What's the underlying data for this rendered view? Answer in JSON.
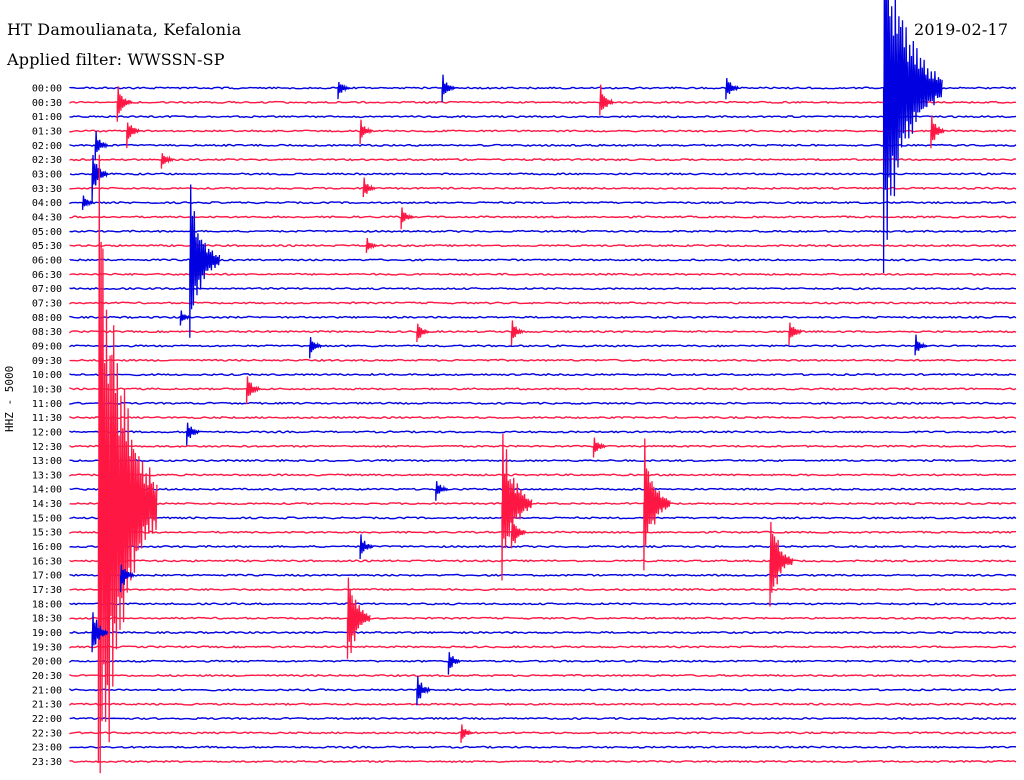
{
  "header": {
    "station": "HT Damoulianata, Kefalonia",
    "date": "2019-02-17",
    "filter": "Applied filter: WWSSN-SP"
  },
  "chart_data": {
    "type": "line",
    "title": "HT Damoulianata, Kefalonia",
    "ylabel": "HHZ - 5000",
    "xlabel": "",
    "row_labels": [
      "00:00",
      "00:30",
      "01:00",
      "01:30",
      "02:00",
      "02:30",
      "03:00",
      "03:30",
      "04:00",
      "04:30",
      "05:00",
      "05:30",
      "06:00",
      "06:30",
      "07:00",
      "07:30",
      "08:00",
      "08:30",
      "09:00",
      "09:30",
      "10:00",
      "10:30",
      "11:00",
      "11:30",
      "12:00",
      "12:30",
      "13:00",
      "13:30",
      "14:00",
      "14:30",
      "15:00",
      "15:30",
      "16:00",
      "16:30",
      "17:00",
      "17:30",
      "18:00",
      "18:30",
      "19:00",
      "19:30",
      "20:00",
      "20:30",
      "21:00",
      "21:30",
      "22:00",
      "22:30",
      "23:00",
      "23:30"
    ],
    "colors": [
      "#0000e0",
      "#ff1744"
    ],
    "events": [
      {
        "time": "00:00",
        "minute": 8.5,
        "amplitude": 0.8
      },
      {
        "time": "00:00",
        "minute": 11.8,
        "amplitude": 1.2
      },
      {
        "time": "00:00",
        "minute": 20.8,
        "amplitude": 1.1
      },
      {
        "time": "00:00",
        "minute": 25.8,
        "amplitude": 14.0
      },
      {
        "time": "00:30",
        "minute": 1.5,
        "amplitude": 1.6
      },
      {
        "time": "00:30",
        "minute": 16.8,
        "amplitude": 1.5
      },
      {
        "time": "01:30",
        "minute": 1.8,
        "amplitude": 1.2
      },
      {
        "time": "01:30",
        "minute": 9.2,
        "amplitude": 1.0
      },
      {
        "time": "01:30",
        "minute": 27.3,
        "amplitude": 1.5
      },
      {
        "time": "02:00",
        "minute": 0.8,
        "amplitude": 1.2
      },
      {
        "time": "02:30",
        "minute": 2.9,
        "amplitude": 0.9
      },
      {
        "time": "03:00",
        "minute": 0.7,
        "amplitude": 2.0
      },
      {
        "time": "03:30",
        "minute": 9.3,
        "amplitude": 1.0
      },
      {
        "time": "04:00",
        "minute": 0.4,
        "amplitude": 0.7
      },
      {
        "time": "04:30",
        "minute": 10.5,
        "amplitude": 0.9
      },
      {
        "time": "05:30",
        "minute": 9.4,
        "amplitude": 0.7
      },
      {
        "time": "06:00",
        "minute": 3.8,
        "amplitude": 6.0
      },
      {
        "time": "08:00",
        "minute": 3.5,
        "amplitude": 0.6
      },
      {
        "time": "08:30",
        "minute": 11.0,
        "amplitude": 1.0
      },
      {
        "time": "08:30",
        "minute": 14.0,
        "amplitude": 1.0
      },
      {
        "time": "08:30",
        "minute": 22.8,
        "amplitude": 1.2
      },
      {
        "time": "09:00",
        "minute": 7.6,
        "amplitude": 1.0
      },
      {
        "time": "09:00",
        "minute": 26.8,
        "amplitude": 1.0
      },
      {
        "time": "10:30",
        "minute": 5.6,
        "amplitude": 1.3
      },
      {
        "time": "12:00",
        "minute": 3.7,
        "amplitude": 1.1
      },
      {
        "time": "12:30",
        "minute": 16.6,
        "amplitude": 1.0
      },
      {
        "time": "14:00",
        "minute": 11.6,
        "amplitude": 1.0
      },
      {
        "time": "14:30",
        "minute": 0.9,
        "amplitude": 30.0
      },
      {
        "time": "14:30",
        "minute": 13.7,
        "amplitude": 6.0
      },
      {
        "time": "14:30",
        "minute": 18.2,
        "amplitude": 5.0
      },
      {
        "time": "15:30",
        "minute": 14.0,
        "amplitude": 1.6
      },
      {
        "time": "16:00",
        "minute": 9.2,
        "amplitude": 1.1
      },
      {
        "time": "16:30",
        "minute": 22.2,
        "amplitude": 4.0
      },
      {
        "time": "17:00",
        "minute": 1.6,
        "amplitude": 1.4
      },
      {
        "time": "18:30",
        "minute": 8.8,
        "amplitude": 4.0
      },
      {
        "time": "19:00",
        "minute": 0.7,
        "amplitude": 2.0
      },
      {
        "time": "20:00",
        "minute": 12.0,
        "amplitude": 1.0
      },
      {
        "time": "21:00",
        "minute": 11.0,
        "amplitude": 1.3
      },
      {
        "time": "22:30",
        "minute": 12.4,
        "amplitude": 0.9
      }
    ]
  }
}
